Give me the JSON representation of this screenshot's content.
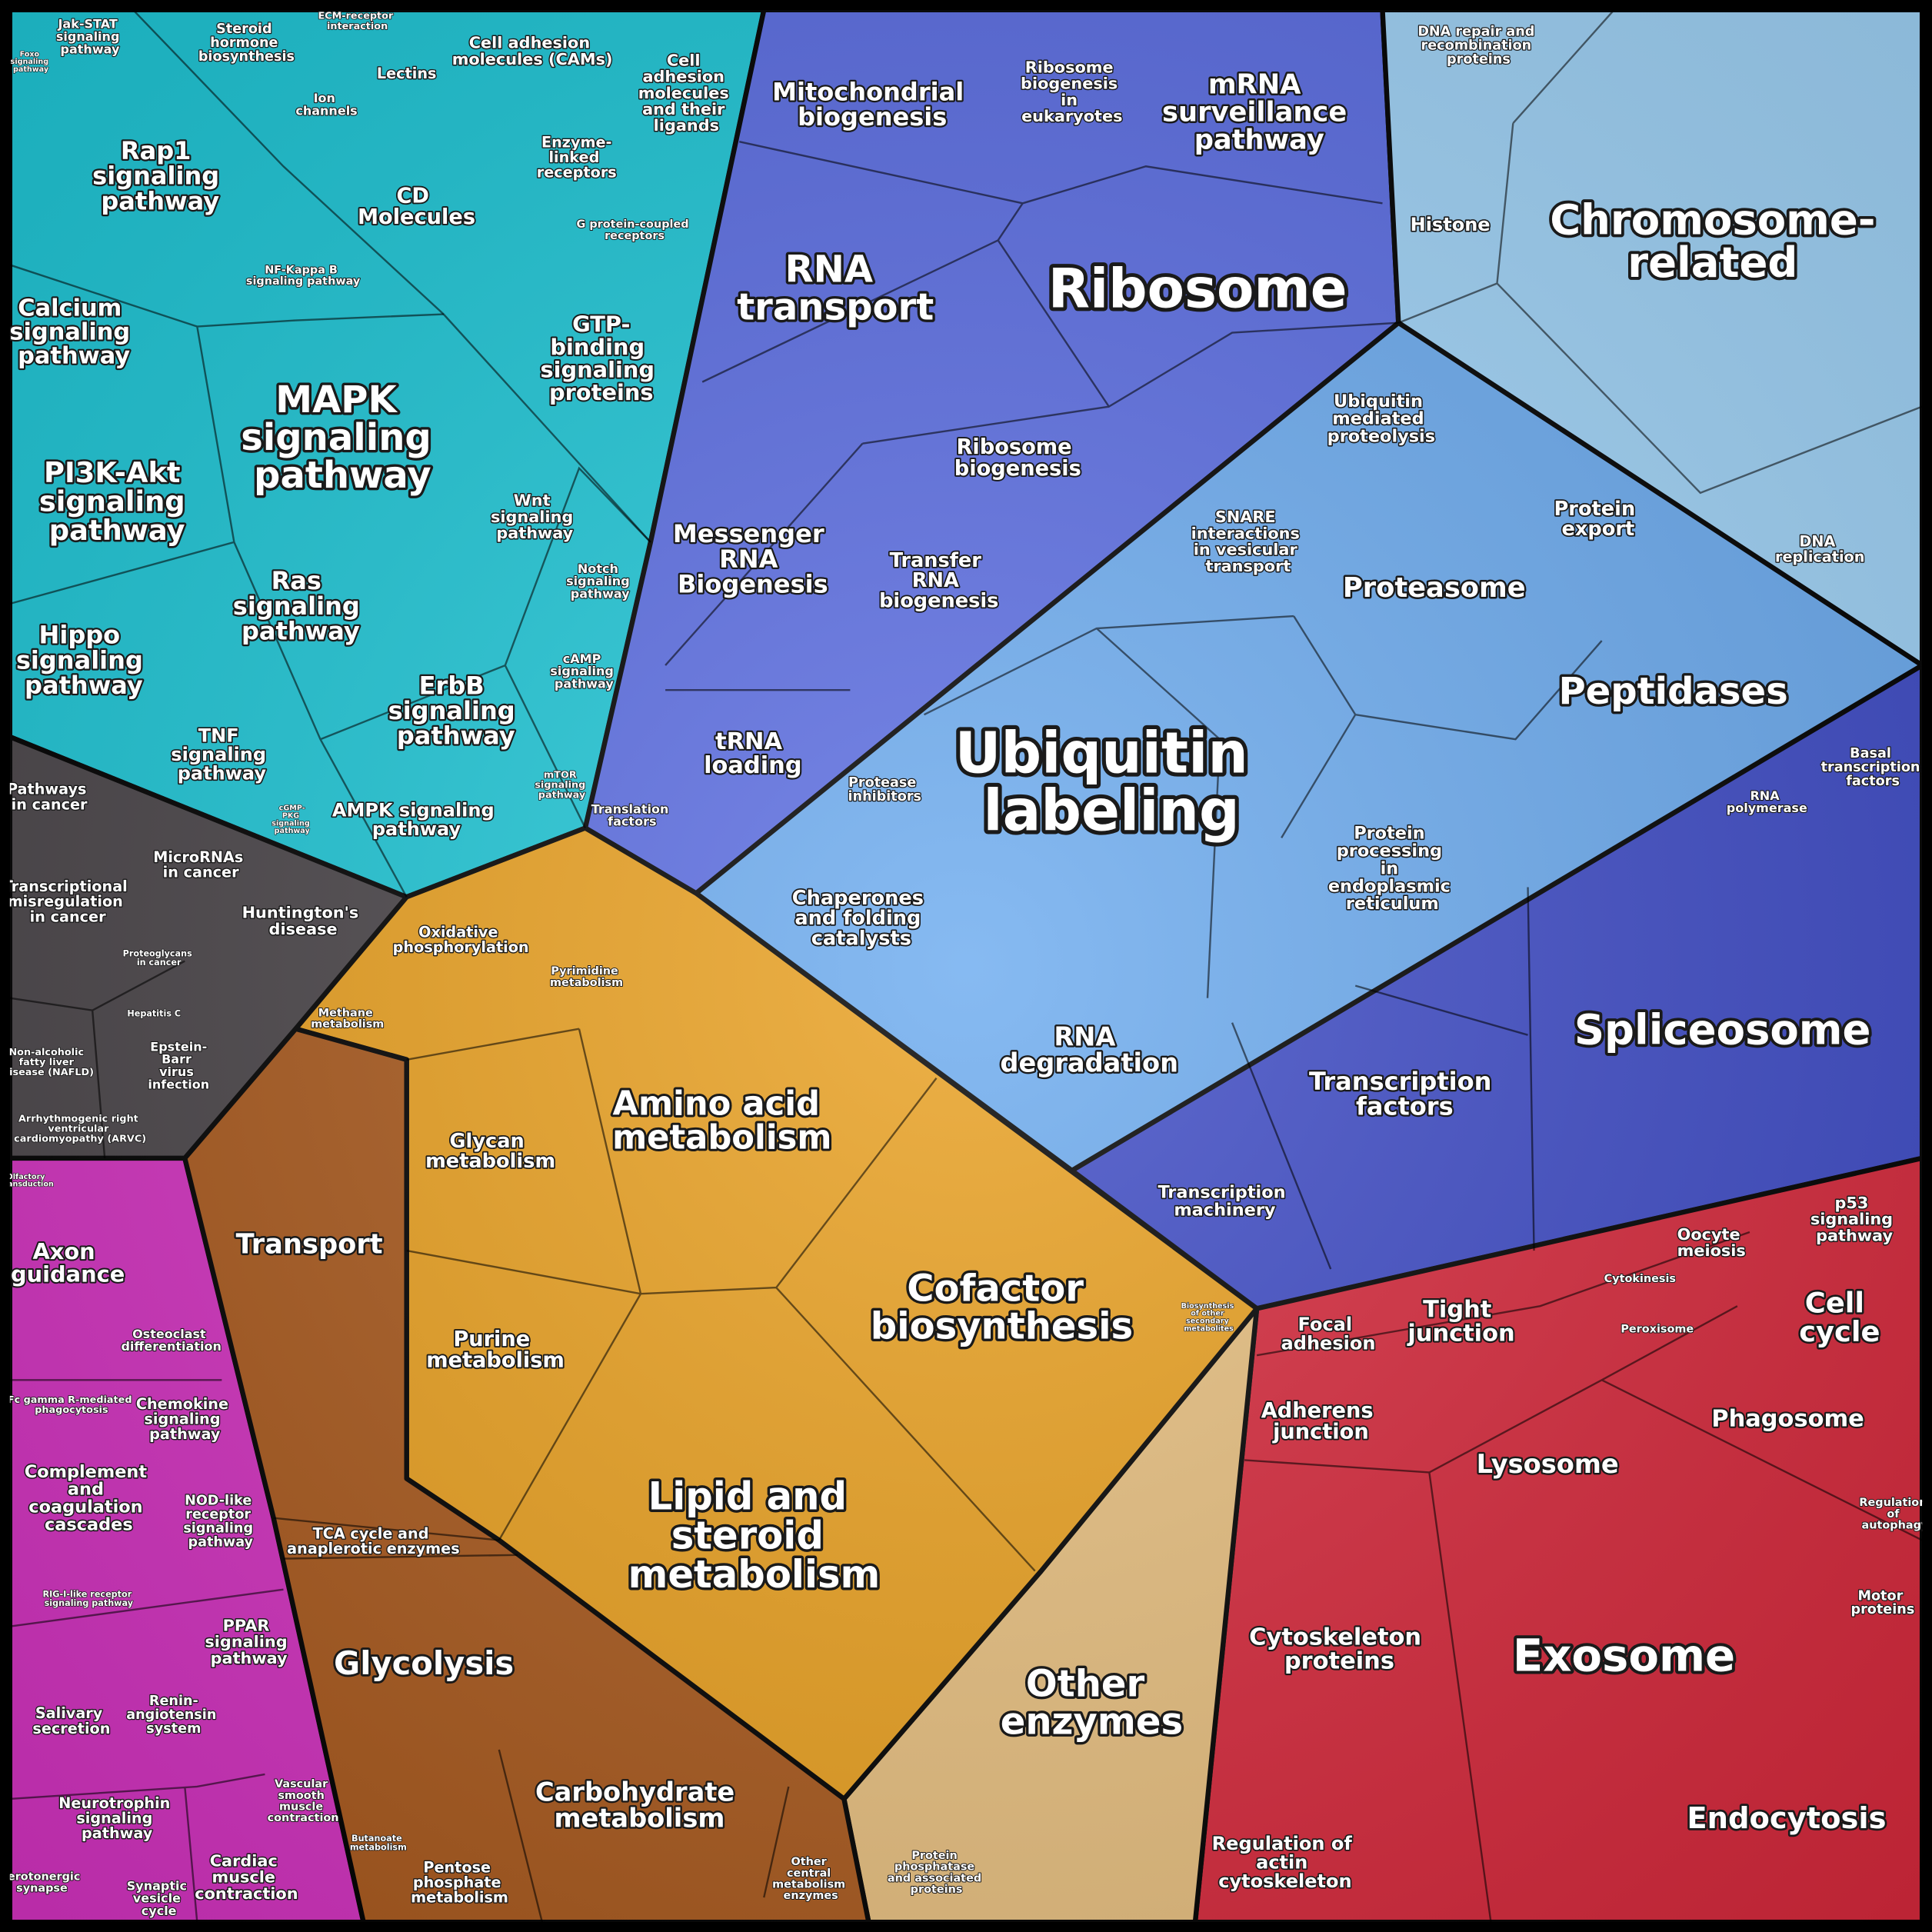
{
  "labels": [
    "Jak-STAT signaling pathway",
    "Foxo signaling pathway",
    "Steroid hormone biosynthesis",
    "ECM-receptor interaction",
    "Lectins",
    "Cell adhesion molecules (CAMs)",
    "Cell adhesion molecules and their ligands",
    "Ion channels",
    "Rap1 signaling pathway",
    "CD Molecules",
    "Enzyme-linked receptors",
    "G protein-coupled receptors",
    "NF-Kappa B signaling pathway",
    "Calcium signaling pathway",
    "GTP-binding signaling proteins",
    "MAPK signaling pathway",
    "PI3K-Akt signaling pathway",
    "Wnt signaling pathway",
    "Notch signaling pathway",
    "Ras signaling pathway",
    "Hippo signaling pathway",
    "ErbB signaling pathway",
    "cAMP signaling pathway",
    "TNF signaling pathway",
    "mTOR signaling pathway",
    "AMPK signaling pathway",
    "cGMP-PKG signaling pathway",
    "Pathways in cancer",
    "MicroRNAs in cancer",
    "Transcriptional misregulation in cancer",
    "Huntington's disease",
    "Proteoglycans in cancer",
    "Hepatitis C",
    "Non-alcoholic fatty liver disease (NAFLD)",
    "Epstein-Barr virus infection",
    "Arrhythmogenic right ventricular cardiomyopathy (ARVC)",
    "Olfactory transduction",
    "Axon guidance",
    "Osteoclast differentiation",
    "Fc gamma R-mediated phagocytosis",
    "Chemokine signaling pathway",
    "Complement and coagulation cascades",
    "NOD-like receptor signaling pathway",
    "RIG-I-like receptor signaling pathway",
    "PPAR signaling pathway",
    "Renin-angiotensin system",
    "Salivary secretion",
    "Neurotrophin signaling pathway",
    "Vascular smooth muscle contraction",
    "Cardiac muscle contraction",
    "Serotonergic synapse",
    "Synaptic vesicle cycle",
    "Mitochondrial biogenesis",
    "Ribosome biogenesis in eukaryotes",
    "mRNA surveillance pathway",
    "RNA transport",
    "Ribosome",
    "Ribosome biogenesis",
    "Messenger RNA Biogenesis",
    "Transfer RNA biogenesis",
    "tRNA loading",
    "Translation factors",
    "DNA repair and recombination proteins",
    "Histone",
    "Chromosome-related",
    "Ubiquitin mediated proteolysis",
    "SNARE interactions in vesicular transport",
    "Protein export",
    "DNA replication",
    "Proteasome",
    "Peptidases",
    "Ubiquitin labeling",
    "Protease inhibitors",
    "Chaperones and folding catalysts",
    "Protein processing in endoplasmic reticulum",
    "RNA degradation",
    "Basal transcription factors",
    "RNA polymerase",
    "Spliceosome",
    "Transcription factors",
    "Transcription machinery",
    "Oxidative phosphorylation",
    "Pyrimidine metabolism",
    "Methane metabolism",
    "Amino acid metabolism",
    "Glycan metabolism",
    "Transport",
    "Cofactor biosynthesis",
    "Purine metabolism",
    "Lipid and steroid metabolism",
    "TCA cycle and anaplerotic enzymes",
    "Glycolysis",
    "Carbohydrate metabolism",
    "Other enzymes",
    "Butanoate metabolism",
    "Pentose phosphate metabolism",
    "Other central metabolism enzymes",
    "Protein phosphatase and associated proteins",
    "Biosynthesis of other secondary metabolites",
    "p53 signaling pathway",
    "Oocyte meiosis",
    "Cell cycle",
    "Cytokinesis",
    "Peroxisome",
    "Focal adhesion",
    "Tight junction",
    "Adherens junction",
    "Phagosome",
    "Lysosome",
    "Regulation of autophagy",
    "Motor proteins",
    "Cytoskeleton proteins",
    "Exosome",
    "Endocytosis",
    "Regulation of actin cytoskeleton"
  ]
}
